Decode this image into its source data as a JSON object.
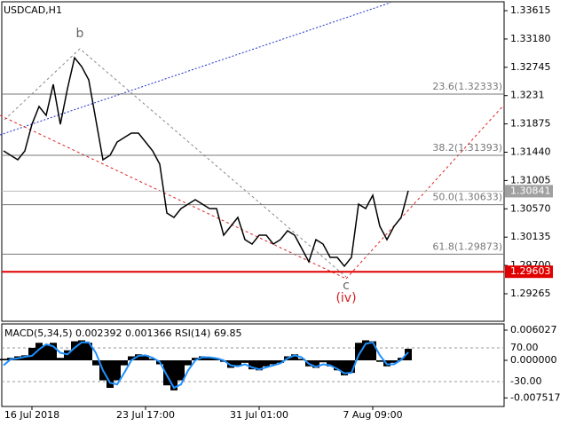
{
  "chart_data": [
    {
      "type": "line",
      "title": "USDCAD,H1",
      "categories": [
        null,
        null,
        null,
        null,
        "16 Jul 2018",
        null,
        null,
        null,
        null,
        null,
        null,
        null,
        null,
        null,
        null,
        null,
        null,
        null,
        null,
        null,
        "23 Jul 17:00",
        null,
        null,
        null,
        null,
        null,
        null,
        null,
        null,
        null,
        null,
        null,
        null,
        null,
        null,
        null,
        "31 Jul 01:00",
        null,
        null,
        null,
        null,
        null,
        null,
        null,
        null,
        null,
        null,
        null,
        null,
        null,
        null,
        null,
        "7 Aug 09:00",
        null,
        null,
        null,
        null,
        null
      ],
      "values": [
        1.3146,
        1.31392,
        1.31324,
        1.3146,
        1.31869,
        1.32142,
        1.32006,
        1.32483,
        1.31869,
        1.32415,
        1.32892,
        1.32756,
        1.32551,
        1.31938,
        1.31324,
        1.31392,
        1.31597,
        1.31665,
        1.31733,
        1.31733,
        1.31597,
        1.3146,
        1.31256,
        1.30506,
        1.30438,
        1.30574,
        1.30642,
        1.3071,
        1.30642,
        1.30574,
        1.30574,
        1.30165,
        1.30301,
        1.30438,
        1.30097,
        1.30028,
        1.30165,
        1.30165,
        1.30028,
        1.30097,
        1.30233,
        1.30165,
        1.2996,
        1.29756,
        1.30097,
        1.30028,
        1.29824,
        1.29824,
        1.29688,
        1.29824,
        1.30642,
        1.30574,
        1.30778,
        1.30301,
        1.30097,
        1.30301,
        1.30438,
        1.30847
      ],
      "color": "#000000",
      "ylim": [
        1.28842,
        1.33779
      ],
      "yticks": [
        1.33615,
        {
          "value": 1.3318,
          "label": "1.33180"
        },
        1.32745,
        1.3231,
        1.31875,
        {
          "value": 1.3144,
          "label": "1.31440"
        },
        1.31005,
        {
          "value": 1.3057,
          "label": "1.30570"
        },
        1.30135,
        {
          "value": 1.297,
          "label": "1.29700"
        },
        1.29265
      ],
      "levels": [
        {
          "label": "23.6(1.32333)",
          "value": 1.32333
        },
        {
          "label": "38.2(1.31393)",
          "value": 1.31393
        },
        {
          "label": "50.0(1.30633)",
          "value": 1.30633
        },
        {
          "label": "61.8(1.29873)",
          "value": 1.29873
        }
      ],
      "support_level": 1.29603,
      "last_price": 1.30841,
      "annotations": [
        "b",
        "c",
        "(iv)"
      ]
    },
    {
      "type": "macd",
      "label": "MACD(5,34,5) 0.002392 0.001366 RSI(14) 69.85",
      "series": [
        {
          "kind": "histogram",
          "color": "#000000",
          "values": [
            0.0003,
            0.0005,
            0.0008,
            0.001,
            0.0025,
            0.0035,
            0.003,
            0.0035,
            0.0005,
            0.002,
            0.0038,
            0.004,
            0.0035,
            -0.001,
            -0.004,
            -0.0055,
            -0.004,
            -0.001,
            0.0008,
            0.0012,
            0.001,
            0.0003,
            -0.0008,
            -0.005,
            -0.006,
            -0.004,
            -0.001,
            0.0005,
            0.0008,
            0.0006,
            0.0004,
            -0.0003,
            -0.0015,
            -0.001,
            -0.0005,
            -0.0018,
            -0.002,
            -0.0012,
            -0.0008,
            -0.0005,
            0.0008,
            0.0012,
            0.0003,
            -0.0012,
            -0.0015,
            -0.0004,
            -0.0012,
            -0.002,
            -0.003,
            -0.0025,
            0.0035,
            0.004,
            0.0038,
            -0.0003,
            -0.0012,
            -0.0005,
            0.0005,
            0.0023
          ]
        },
        {
          "kind": "line",
          "color": "#1e90ff",
          "values": [
            -0.001,
            0.0002,
            0.0004,
            0.0007,
            0.0009,
            0.0022,
            0.0032,
            0.0028,
            0.0015,
            0.0012,
            0.0025,
            0.0036,
            0.0036,
            0.0015,
            -0.002,
            -0.0045,
            -0.0048,
            -0.0025,
            0,
            0.0009,
            0.001,
            0.0005,
            -0.0003,
            -0.003,
            -0.0055,
            -0.0048,
            -0.002,
            0,
            0.0006,
            0.0006,
            0.0004,
            0,
            -0.001,
            -0.0012,
            -0.0008,
            -0.0014,
            -0.0018,
            -0.0014,
            -0.001,
            -0.0006,
            0.0004,
            0.001,
            0.0006,
            -0.0007,
            -0.0013,
            -0.0008,
            -0.001,
            -0.0017,
            -0.0026,
            -0.0025,
            0.001,
            0.0033,
            0.0036,
            0.001,
            -0.0008,
            -0.0008,
            0.0001,
            0.0016
          ]
        }
      ],
      "ylim": [
        -0.00922,
        0.00727
      ],
      "yticks": [
        0.006027,
        {
          "value": 0,
          "label": "0.000000"
        },
        -0.007517
      ],
      "y2lim": [
        -103.68,
        141.05
      ],
      "y2ticks": [
        {
          "value": 70,
          "label": "70.00"
        },
        {
          "value": -30,
          "label": "-30.00"
        }
      ]
    }
  ]
}
